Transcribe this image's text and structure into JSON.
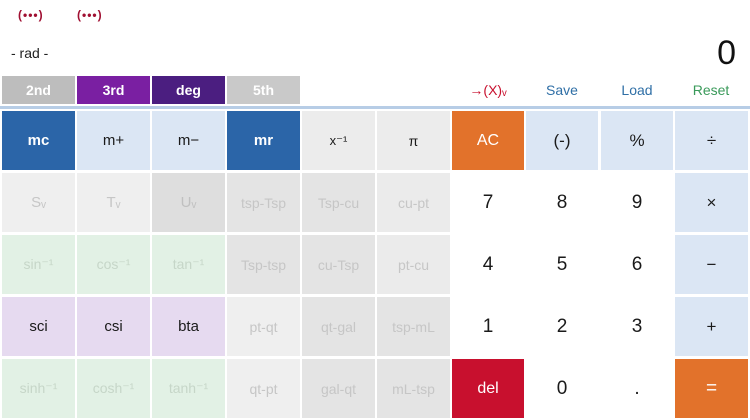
{
  "header": {
    "menu1": "(•••)",
    "menu2": "(•••)",
    "mode": "- rad -",
    "display": "0"
  },
  "tabs": [
    {
      "id": "2nd",
      "label": "2nd"
    },
    {
      "id": "3rd",
      "label": "3rd"
    },
    {
      "id": "deg",
      "label": "deg"
    },
    {
      "id": "5th",
      "label": "5th"
    }
  ],
  "actions": {
    "convert": "→(X)ᵥ",
    "save": "Save",
    "load": "Load",
    "reset": "Reset"
  },
  "memory": {
    "mc": "mc",
    "mplus": "m+",
    "mminus": "m−",
    "mr": "mr",
    "xinv": "x⁻¹",
    "pi": "π"
  },
  "functions": {
    "s_v": "Sᵥ",
    "t_v": "Tᵥ",
    "u_v": "Uᵥ",
    "tsp_tsp": "tsp-Tsp",
    "Tsp_cu": "Tsp-cu",
    "cu_pt": "cu-pt",
    "sin_inv": "sin⁻¹",
    "cos_inv": "cos⁻¹",
    "tan_inv": "tan⁻¹",
    "Tsp_tsp": "Tsp-tsp",
    "cu_Tsp": "cu-Tsp",
    "pt_cu": "pt-cu",
    "sci": "sci",
    "csi": "csi",
    "bta": "bta",
    "pt_qt": "pt-qt",
    "qt_gal": "qt-gal",
    "tsp_mL": "tsp-mL",
    "sinh_inv": "sinh⁻¹",
    "cosh_inv": "cosh⁻¹",
    "tanh_inv": "tanh⁻¹",
    "qt_pt": "qt-pt",
    "gal_qt": "gal-qt",
    "mL_tsp": "mL-tsp"
  },
  "keypad": {
    "ac": "AC",
    "negate": "(-)",
    "percent": "%",
    "divide": "÷",
    "n7": "7",
    "n8": "8",
    "n9": "9",
    "multiply": "×",
    "n4": "4",
    "n5": "5",
    "n6": "6",
    "minus": "−",
    "n1": "1",
    "n2": "2",
    "n3": "3",
    "plus": "+",
    "del": "del",
    "n0": "0",
    "dot": ".",
    "equals": "="
  },
  "colors": {
    "accent_blue": "#2b65a8",
    "purple": "#7a1fa2",
    "dark_purple": "#4b1e80",
    "orange": "#e2722b",
    "red": "#c8102e",
    "save_blue": "#2f6fa6",
    "reset_green": "#3a9a5a"
  }
}
